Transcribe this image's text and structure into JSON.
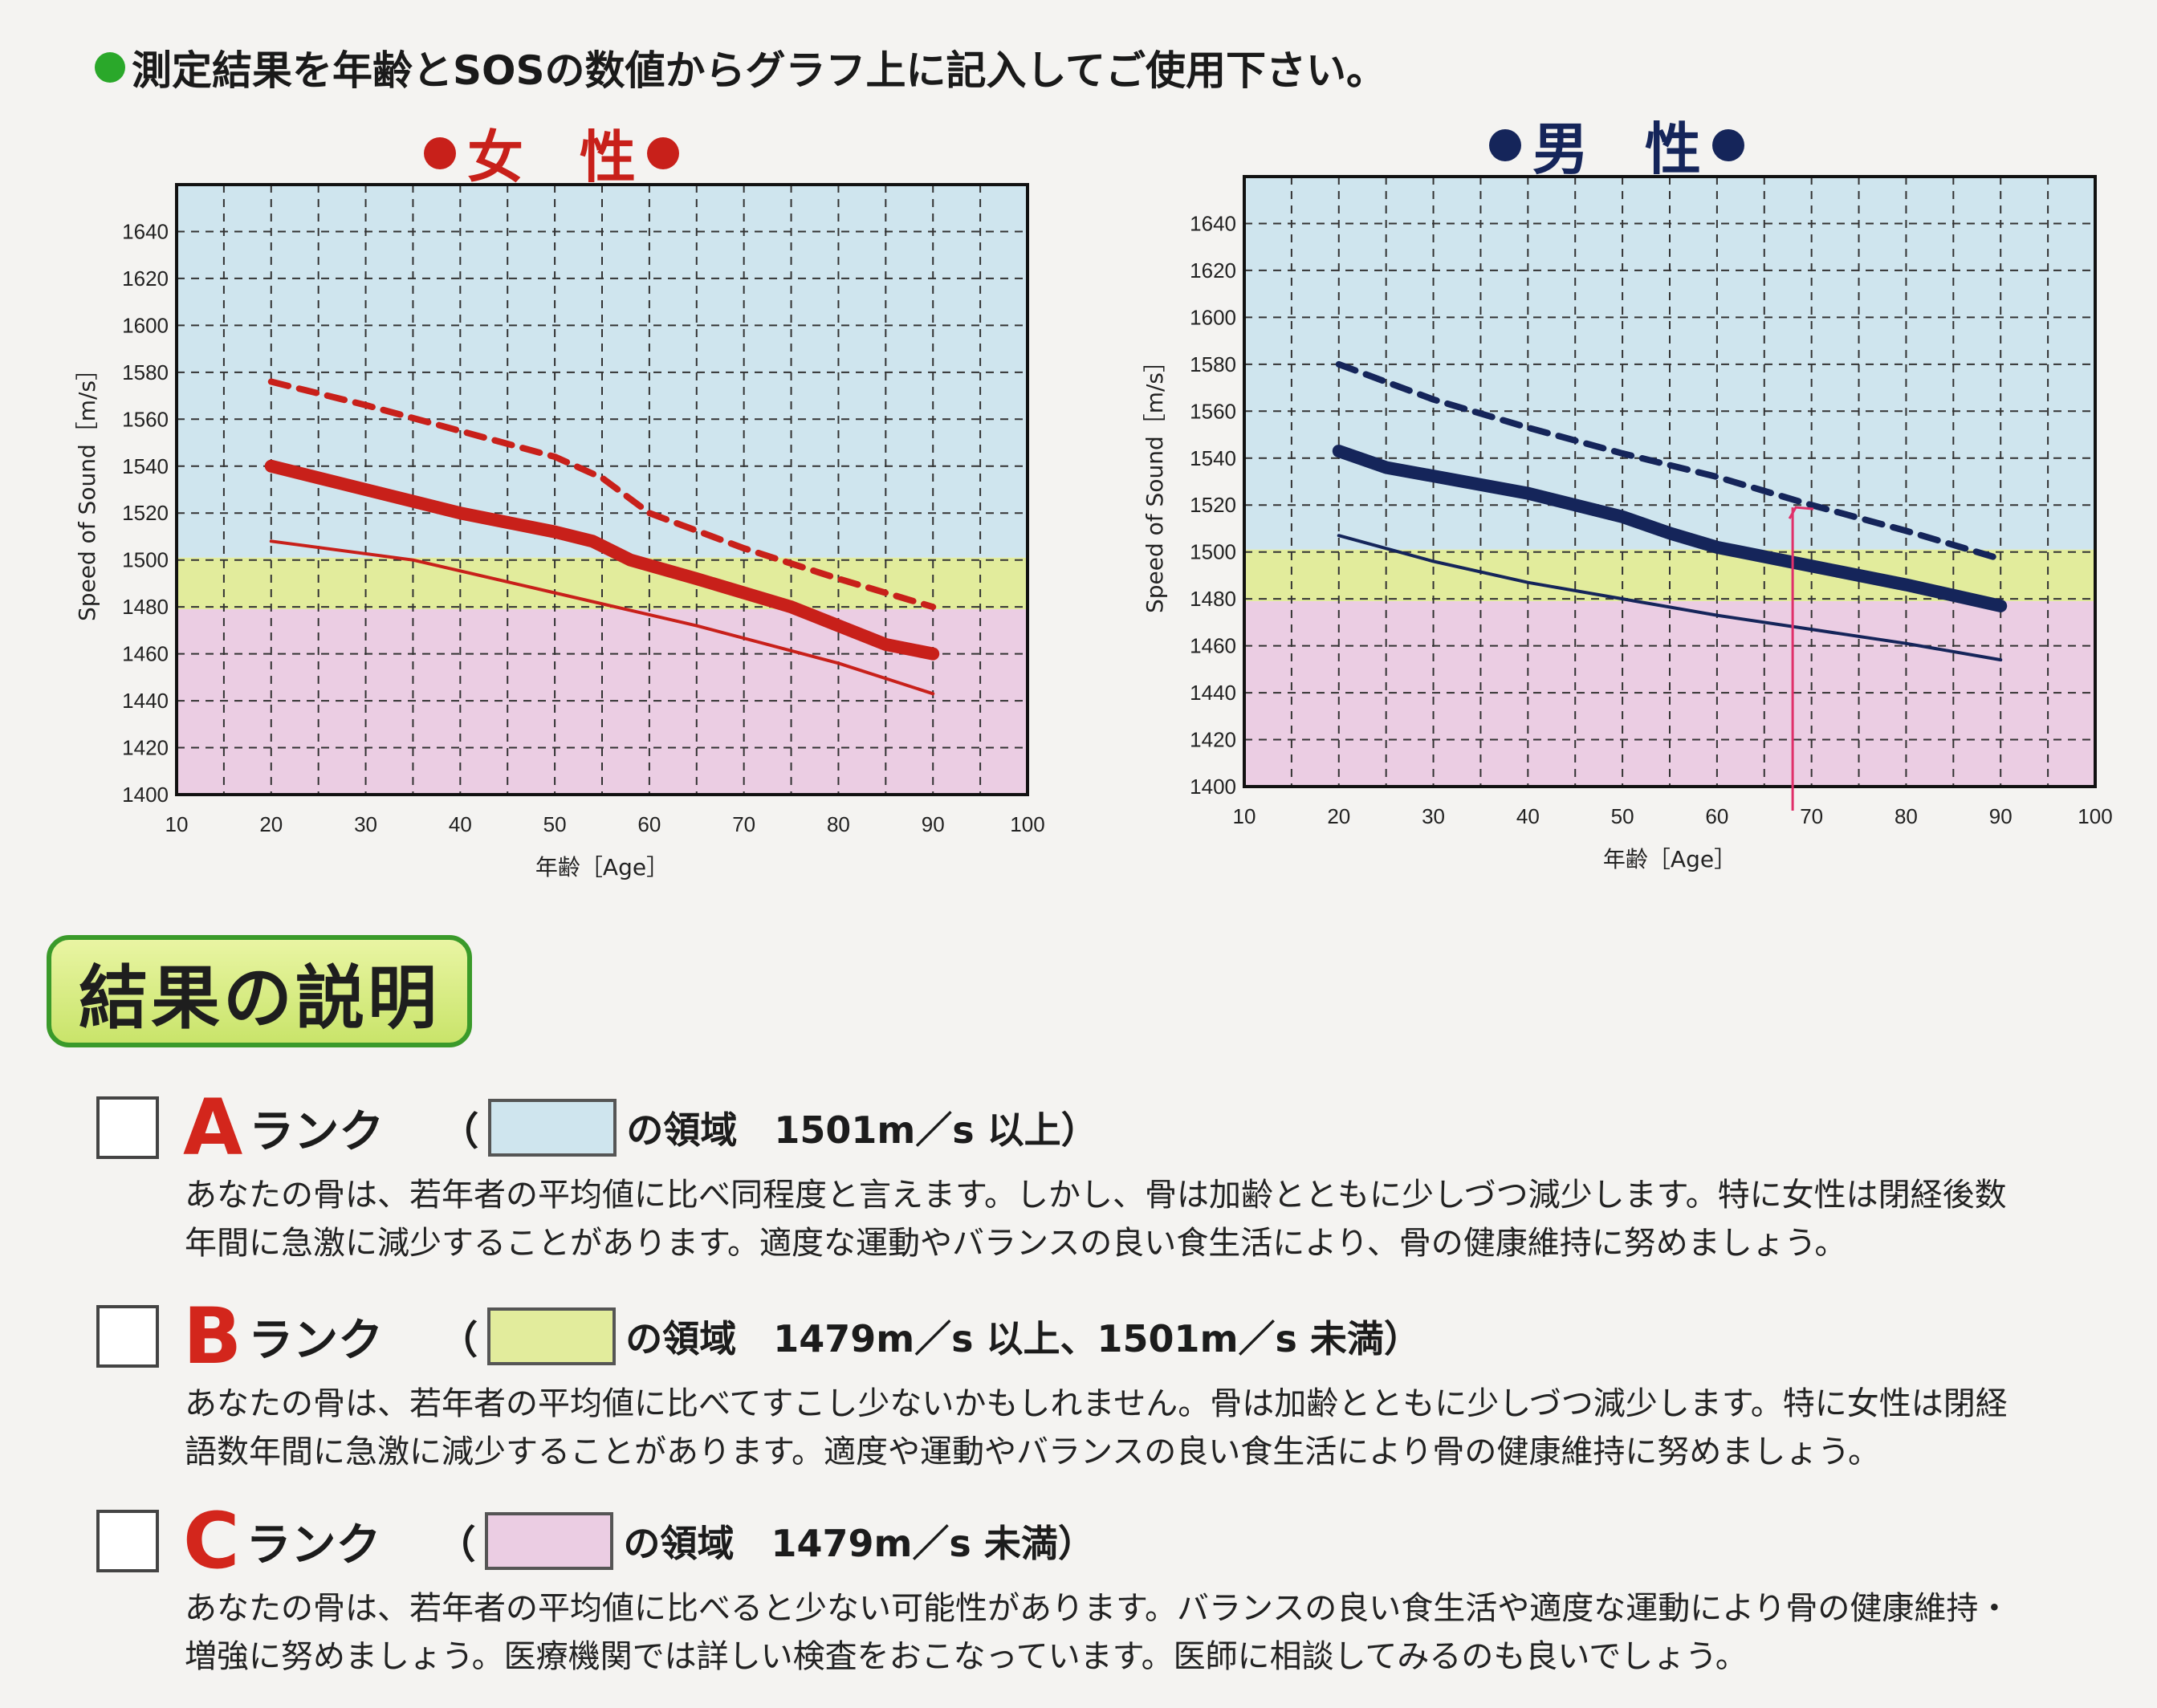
{
  "instruction": "測定結果を年齢とSOSの数値からグラフ上に記入してご使用下さい。",
  "colors": {
    "zone_a": "#cfe5ee",
    "zone_b": "#e2ec9c",
    "zone_c": "#ebcde3",
    "female": "#c8201a",
    "male": "#15255a",
    "annotation": "#e0306a"
  },
  "chart_data": [
    {
      "type": "line",
      "title": "女　性",
      "xlabel": "年齢［Age］",
      "ylabel": "Speed of Sound［m/s］",
      "xlim": [
        10,
        100
      ],
      "ylim": [
        1400,
        1660
      ],
      "x_ticks": [
        10,
        20,
        30,
        40,
        50,
        60,
        70,
        80,
        90,
        100
      ],
      "y_ticks": [
        1400,
        1420,
        1440,
        1460,
        1480,
        1500,
        1520,
        1540,
        1560,
        1580,
        1600,
        1620,
        1640
      ],
      "zones": [
        {
          "rank": "A",
          "from": 1501,
          "to": 1660
        },
        {
          "rank": "B",
          "from": 1479,
          "to": 1501
        },
        {
          "rank": "C",
          "from": 1400,
          "to": 1479
        }
      ],
      "grid": true,
      "series": [
        {
          "style": "dashed",
          "x": [
            20,
            30,
            40,
            50,
            55,
            60,
            70,
            80,
            90
          ],
          "y": [
            1576,
            1566,
            1555,
            1544,
            1535,
            1520,
            1505,
            1492,
            1480
          ]
        },
        {
          "style": "thick",
          "x": [
            20,
            30,
            40,
            50,
            54,
            58,
            65,
            75,
            85,
            90
          ],
          "y": [
            1540,
            1530,
            1520,
            1512,
            1508,
            1500,
            1492,
            1480,
            1464,
            1460
          ]
        },
        {
          "style": "thin",
          "x": [
            20,
            35,
            50,
            65,
            80,
            90
          ],
          "y": [
            1508,
            1500,
            1486,
            1472,
            1456,
            1443
          ]
        }
      ]
    },
    {
      "type": "line",
      "title": "男　性",
      "xlabel": "年齢［Age］",
      "ylabel": "Speed of Sound［m/s］",
      "xlim": [
        10,
        100
      ],
      "ylim": [
        1400,
        1660
      ],
      "x_ticks": [
        10,
        20,
        30,
        40,
        50,
        60,
        70,
        80,
        90,
        100
      ],
      "y_ticks": [
        1400,
        1420,
        1440,
        1460,
        1480,
        1500,
        1520,
        1540,
        1560,
        1580,
        1600,
        1620,
        1640
      ],
      "zones": [
        {
          "rank": "A",
          "from": 1501,
          "to": 1660
        },
        {
          "rank": "B",
          "from": 1479,
          "to": 1501
        },
        {
          "rank": "C",
          "from": 1400,
          "to": 1479
        }
      ],
      "grid": true,
      "series": [
        {
          "style": "dashed",
          "x": [
            20,
            30,
            40,
            50,
            60,
            70,
            80,
            90
          ],
          "y": [
            1580,
            1565,
            1553,
            1542,
            1532,
            1520,
            1509,
            1497
          ]
        },
        {
          "style": "thick",
          "x": [
            20,
            25,
            40,
            50,
            55,
            60,
            70,
            80,
            90
          ],
          "y": [
            1543,
            1536,
            1525,
            1515,
            1508,
            1502,
            1494,
            1486,
            1477
          ]
        },
        {
          "style": "thin",
          "x": [
            20,
            30,
            40,
            50,
            60,
            70,
            80,
            90
          ],
          "y": [
            1507,
            1496,
            1487,
            1480,
            1473,
            1467,
            1461,
            1454
          ]
        }
      ],
      "annotation": {
        "x": 68,
        "y": 1519
      }
    }
  ],
  "explanation_title": "結果の説明",
  "ranks": [
    {
      "letter": "A",
      "label": "ランク",
      "open": "（",
      "region": "の領域",
      "threshold": "1501m／s 以上）",
      "desc": [
        "あなたの骨は、若年者の平均値に比べ同程度と言えます。しかし、骨は加齢とともに少しづつ減少します。特に女性は閉経後数",
        "年間に急激に減少することがあります。適度な運動やバランスの良い食生活により、骨の健康維持に努めましょう。"
      ]
    },
    {
      "letter": "B",
      "label": "ランク",
      "open": "（",
      "region": "の領域",
      "threshold": "1479m／s 以上、1501m／s 未満）",
      "desc": [
        "あなたの骨は、若年者の平均値に比べてすこし少ないかもしれません。骨は加齢とともに少しづつ減少します。特に女性は閉経",
        "語数年間に急激に減少することがあります。適度や運動やバランスの良い食生活により骨の健康維持に努めましょう。"
      ]
    },
    {
      "letter": "C",
      "label": "ランク",
      "open": "（",
      "region": "の領域",
      "threshold": "1479m／s 未満）",
      "desc": [
        "あなたの骨は、若年者の平均値に比べると少ない可能性があります。バランスの良い食生活や適度な運動により骨の健康維持・",
        "増強に努めましょう。医療機関では詳しい検査をおこなっています。医師に相談してみるのも良いでしょう。"
      ]
    }
  ]
}
